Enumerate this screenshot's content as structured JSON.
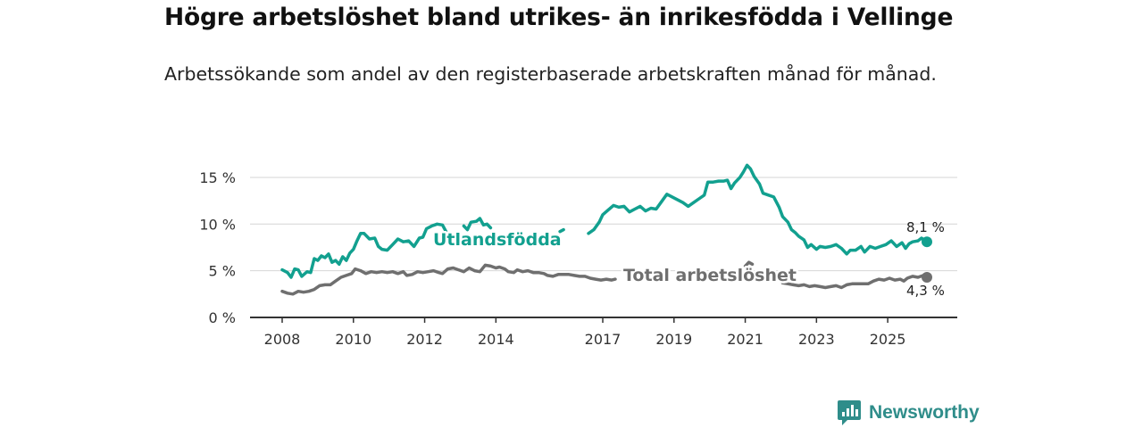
{
  "title": "Högre arbetslöshet bland utrikes- än inrikesfödda i Vellinge",
  "subtitle": "Arbetssökande som andel av den registerbaserade arbetskraften månad för månad.",
  "brand": {
    "name": "Newsworthy",
    "color": "#2f8d8a"
  },
  "colors": {
    "foreign": "#12a08f",
    "total": "#6f6f6f",
    "grid": "#d6d6d6",
    "axis": "#333333"
  },
  "chart_data": {
    "type": "line",
    "title": "Högre arbetslöshet bland utrikes- än inrikesfödda i Vellinge",
    "xlabel": "",
    "ylabel": "",
    "xlim": [
      2008,
      2026.3
    ],
    "ylim": [
      0,
      17
    ],
    "yticks": [
      0,
      5,
      10,
      15
    ],
    "ytick_labels": [
      "0 %",
      "5 %",
      "10 %",
      "15 %"
    ],
    "xticks": [
      2008,
      2010,
      2012,
      2014,
      2017,
      2019,
      2021,
      2023,
      2025
    ],
    "xtick_labels": [
      "2008",
      "2010",
      "2012",
      "2014",
      "2017",
      "2019",
      "2021",
      "2023",
      "2025"
    ],
    "grid": true,
    "series": [
      {
        "name": "Utlandsfödda",
        "label": "Utlandsfödda",
        "color": "#12a08f",
        "end_label": "8,1 %",
        "segments": [
          [
            [
              2008.0,
              5.1
            ],
            [
              2008.15,
              4.8
            ],
            [
              2008.25,
              4.3
            ],
            [
              2008.35,
              5.2
            ],
            [
              2008.45,
              5.1
            ],
            [
              2008.55,
              4.4
            ],
            [
              2008.7,
              4.9
            ],
            [
              2008.8,
              4.8
            ],
            [
              2008.9,
              6.3
            ],
            [
              2009.0,
              6.1
            ],
            [
              2009.1,
              6.6
            ],
            [
              2009.2,
              6.4
            ],
            [
              2009.3,
              6.8
            ],
            [
              2009.4,
              5.9
            ],
            [
              2009.5,
              6.1
            ],
            [
              2009.6,
              5.7
            ],
            [
              2009.7,
              6.5
            ],
            [
              2009.8,
              6.1
            ],
            [
              2009.9,
              6.9
            ],
            [
              2010.0,
              7.3
            ],
            [
              2010.1,
              8.2
            ],
            [
              2010.2,
              9.0
            ],
            [
              2010.3,
              9.0
            ],
            [
              2010.45,
              8.4
            ],
            [
              2010.6,
              8.5
            ],
            [
              2010.7,
              7.6
            ],
            [
              2010.8,
              7.3
            ],
            [
              2010.95,
              7.2
            ],
            [
              2011.1,
              7.8
            ],
            [
              2011.25,
              8.4
            ],
            [
              2011.4,
              8.1
            ],
            [
              2011.55,
              8.2
            ],
            [
              2011.7,
              7.6
            ],
            [
              2011.85,
              8.5
            ],
            [
              2011.95,
              8.6
            ],
            [
              2012.05,
              9.5
            ],
            [
              2012.2,
              9.8
            ],
            [
              2012.35,
              10.0
            ],
            [
              2012.5,
              9.9
            ],
            [
              2012.6,
              9.2
            ]
          ],
          [
            [
              2013.1,
              9.8
            ],
            [
              2013.2,
              9.4
            ],
            [
              2013.3,
              10.2
            ],
            [
              2013.45,
              10.3
            ],
            [
              2013.55,
              10.6
            ],
            [
              2013.65,
              9.9
            ],
            [
              2013.75,
              10.0
            ],
            [
              2013.85,
              9.6
            ]
          ],
          [
            [
              2015.8,
              9.2
            ],
            [
              2015.9,
              9.4
            ]
          ],
          [
            [
              2016.6,
              9.0
            ],
            [
              2016.75,
              9.4
            ],
            [
              2016.9,
              10.2
            ],
            [
              2017.0,
              11.0
            ],
            [
              2017.15,
              11.5
            ],
            [
              2017.3,
              12.0
            ],
            [
              2017.45,
              11.8
            ],
            [
              2017.6,
              11.9
            ],
            [
              2017.75,
              11.3
            ],
            [
              2017.9,
              11.6
            ],
            [
              2018.05,
              11.9
            ],
            [
              2018.2,
              11.4
            ],
            [
              2018.35,
              11.7
            ],
            [
              2018.5,
              11.6
            ],
            [
              2018.65,
              12.4
            ],
            [
              2018.8,
              13.2
            ],
            [
              2018.95,
              12.9
            ],
            [
              2019.1,
              12.6
            ],
            [
              2019.25,
              12.3
            ],
            [
              2019.4,
              11.9
            ],
            [
              2019.55,
              12.3
            ],
            [
              2019.7,
              12.7
            ],
            [
              2019.85,
              13.1
            ],
            [
              2019.95,
              14.5
            ],
            [
              2020.1,
              14.5
            ],
            [
              2020.25,
              14.6
            ],
            [
              2020.4,
              14.6
            ],
            [
              2020.5,
              14.7
            ],
            [
              2020.6,
              13.8
            ],
            [
              2020.7,
              14.4
            ],
            [
              2020.85,
              15.0
            ],
            [
              2020.95,
              15.6
            ],
            [
              2021.05,
              16.3
            ],
            [
              2021.15,
              15.9
            ],
            [
              2021.25,
              15.1
            ],
            [
              2021.4,
              14.3
            ],
            [
              2021.5,
              13.3
            ],
            [
              2021.65,
              13.1
            ],
            [
              2021.8,
              12.9
            ],
            [
              2021.95,
              11.8
            ],
            [
              2022.05,
              10.8
            ],
            [
              2022.2,
              10.2
            ],
            [
              2022.3,
              9.4
            ],
            [
              2022.4,
              9.1
            ],
            [
              2022.5,
              8.7
            ],
            [
              2022.65,
              8.3
            ],
            [
              2022.75,
              7.5
            ],
            [
              2022.85,
              7.8
            ],
            [
              2023.0,
              7.3
            ],
            [
              2023.1,
              7.6
            ],
            [
              2023.25,
              7.5
            ],
            [
              2023.4,
              7.6
            ],
            [
              2023.55,
              7.8
            ],
            [
              2023.7,
              7.4
            ],
            [
              2023.85,
              6.8
            ],
            [
              2023.95,
              7.2
            ],
            [
              2024.1,
              7.2
            ],
            [
              2024.25,
              7.6
            ],
            [
              2024.35,
              7.0
            ],
            [
              2024.5,
              7.6
            ],
            [
              2024.65,
              7.4
            ],
            [
              2024.8,
              7.6
            ],
            [
              2024.95,
              7.8
            ],
            [
              2025.1,
              8.2
            ],
            [
              2025.25,
              7.6
            ],
            [
              2025.4,
              8.0
            ],
            [
              2025.5,
              7.4
            ],
            [
              2025.6,
              7.9
            ],
            [
              2025.7,
              8.1
            ],
            [
              2025.85,
              8.2
            ],
            [
              2025.95,
              8.5
            ],
            [
              2026.1,
              8.1
            ]
          ]
        ]
      },
      {
        "name": "Total arbetslöshet",
        "label": "Total arbetslöshet",
        "color": "#6f6f6f",
        "end_label": "4,3 %",
        "segments": [
          [
            [
              2008.0,
              2.8
            ],
            [
              2008.15,
              2.6
            ],
            [
              2008.3,
              2.5
            ],
            [
              2008.45,
              2.8
            ],
            [
              2008.6,
              2.7
            ],
            [
              2008.75,
              2.8
            ],
            [
              2008.9,
              3.0
            ],
            [
              2009.05,
              3.4
            ],
            [
              2009.2,
              3.5
            ],
            [
              2009.35,
              3.5
            ],
            [
              2009.5,
              3.9
            ],
            [
              2009.65,
              4.3
            ],
            [
              2009.8,
              4.5
            ],
            [
              2009.95,
              4.7
            ],
            [
              2010.05,
              5.2
            ],
            [
              2010.2,
              5.0
            ],
            [
              2010.35,
              4.7
            ],
            [
              2010.5,
              4.9
            ],
            [
              2010.65,
              4.8
            ],
            [
              2010.8,
              4.9
            ],
            [
              2010.95,
              4.8
            ],
            [
              2011.1,
              4.9
            ],
            [
              2011.25,
              4.7
            ],
            [
              2011.4,
              4.9
            ],
            [
              2011.5,
              4.5
            ],
            [
              2011.65,
              4.6
            ],
            [
              2011.8,
              4.9
            ],
            [
              2011.95,
              4.8
            ],
            [
              2012.1,
              4.9
            ],
            [
              2012.25,
              5.0
            ],
            [
              2012.4,
              4.8
            ],
            [
              2012.5,
              4.7
            ],
            [
              2012.65,
              5.2
            ],
            [
              2012.8,
              5.3
            ],
            [
              2012.95,
              5.1
            ],
            [
              2013.1,
              4.9
            ],
            [
              2013.25,
              5.3
            ],
            [
              2013.4,
              5.0
            ],
            [
              2013.55,
              4.9
            ],
            [
              2013.7,
              5.6
            ],
            [
              2013.85,
              5.5
            ],
            [
              2014.0,
              5.3
            ],
            [
              2014.1,
              5.4
            ],
            [
              2014.25,
              5.2
            ],
            [
              2014.35,
              4.9
            ],
            [
              2014.5,
              4.8
            ],
            [
              2014.6,
              5.1
            ],
            [
              2014.75,
              4.9
            ],
            [
              2014.9,
              5.0
            ],
            [
              2015.05,
              4.8
            ],
            [
              2015.2,
              4.8
            ],
            [
              2015.35,
              4.7
            ],
            [
              2015.45,
              4.5
            ],
            [
              2015.6,
              4.4
            ],
            [
              2015.75,
              4.6
            ],
            [
              2015.9,
              4.6
            ],
            [
              2016.05,
              4.6
            ],
            [
              2016.2,
              4.5
            ],
            [
              2016.35,
              4.4
            ],
            [
              2016.5,
              4.4
            ],
            [
              2016.65,
              4.2
            ],
            [
              2016.8,
              4.1
            ],
            [
              2016.95,
              4.0
            ],
            [
              2017.1,
              4.1
            ],
            [
              2017.25,
              4.0
            ],
            [
              2017.35,
              4.1
            ]
          ],
          [
            [
              2017.7,
              4.2
            ],
            [
              2017.85,
              4.1
            ]
          ],
          [
            [
              2021.0,
              5.5
            ],
            [
              2021.1,
              5.9
            ],
            [
              2021.2,
              5.7
            ]
          ],
          [
            [
              2022.05,
              3.7
            ],
            [
              2022.2,
              3.6
            ],
            [
              2022.35,
              3.5
            ],
            [
              2022.5,
              3.4
            ],
            [
              2022.65,
              3.5
            ],
            [
              2022.8,
              3.3
            ],
            [
              2022.95,
              3.4
            ],
            [
              2023.1,
              3.3
            ],
            [
              2023.25,
              3.2
            ],
            [
              2023.4,
              3.3
            ],
            [
              2023.55,
              3.4
            ],
            [
              2023.7,
              3.2
            ],
            [
              2023.85,
              3.5
            ],
            [
              2024.0,
              3.6
            ],
            [
              2024.15,
              3.6
            ],
            [
              2024.3,
              3.6
            ],
            [
              2024.45,
              3.6
            ],
            [
              2024.6,
              3.9
            ],
            [
              2024.75,
              4.1
            ],
            [
              2024.9,
              4.0
            ],
            [
              2025.05,
              4.2
            ],
            [
              2025.2,
              4.0
            ],
            [
              2025.35,
              4.1
            ],
            [
              2025.45,
              3.9
            ],
            [
              2025.55,
              4.2
            ],
            [
              2025.7,
              4.4
            ],
            [
              2025.85,
              4.3
            ],
            [
              2026.0,
              4.5
            ],
            [
              2026.1,
              4.3
            ]
          ]
        ]
      }
    ]
  }
}
